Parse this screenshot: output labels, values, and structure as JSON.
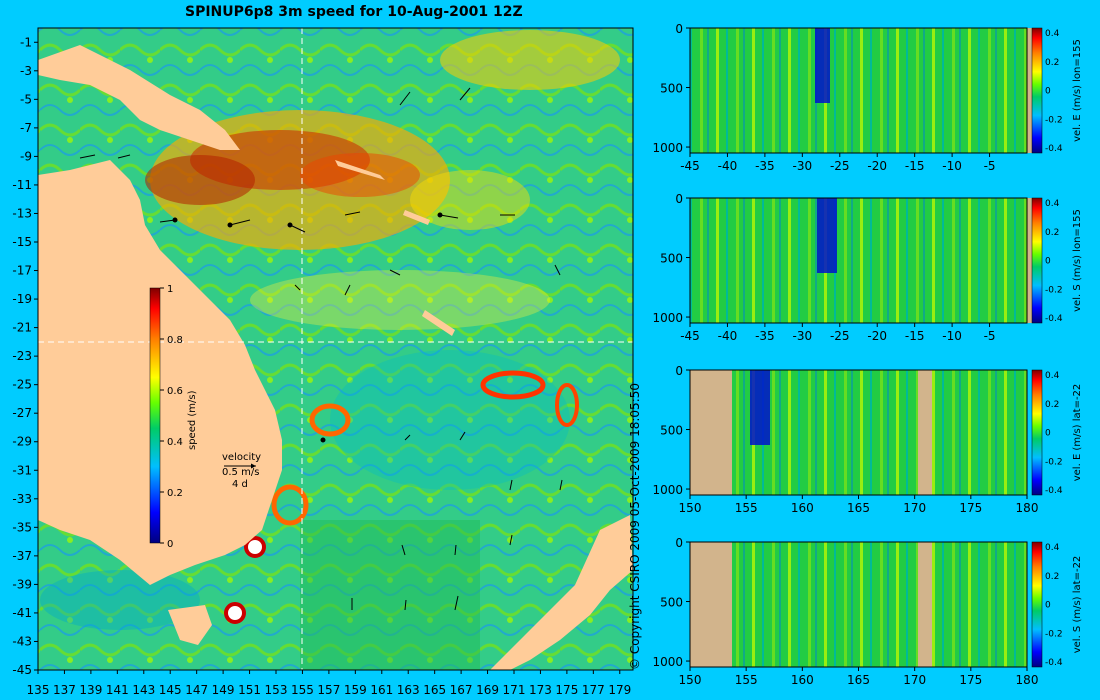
{
  "title": "SPINUP6p8 3m speed for 10-Aug-2001 12Z",
  "copyright": "© Copyright CSIRO 2009   05-Oct-2009 18:05:50",
  "colors": {
    "background": "#00ccff",
    "land": "#ffcc99",
    "section_land": "#d2b48c",
    "colormap": [
      "#00007f",
      "#0000ff",
      "#007fff",
      "#00ffff",
      "#00cc66",
      "#66ff00",
      "#ffff00",
      "#ff7f00",
      "#ff0000",
      "#7f0000"
    ]
  },
  "chart_data": [
    {
      "type": "heatmap",
      "name": "map",
      "title": "SPINUP6p8 3m speed for 10-Aug-2001 12Z",
      "x_ticks": [
        "135",
        "137",
        "139",
        "141",
        "143",
        "145",
        "147",
        "149",
        "151",
        "153",
        "155",
        "157",
        "159",
        "161",
        "163",
        "165",
        "167",
        "169",
        "171",
        "173",
        "175",
        "177",
        "179"
      ],
      "y_ticks": [
        "-1",
        "-3",
        "-5",
        "-7",
        "-9",
        "-11",
        "-13",
        "-15",
        "-17",
        "-19",
        "-21",
        "-23",
        "-25",
        "-27",
        "-29",
        "-31",
        "-33",
        "-35",
        "-37",
        "-39",
        "-41",
        "-43",
        "-45"
      ],
      "xlim": [
        135,
        180
      ],
      "ylim": [
        -45,
        0
      ],
      "section_lon": 155,
      "section_lat": -22,
      "colorbar": {
        "label": "speed (m/s)",
        "ticks": [
          "0",
          "0.2",
          "0.4",
          "0.6",
          "0.8",
          "1"
        ],
        "range": [
          0,
          1
        ]
      },
      "velocity_key": {
        "title": "velocity",
        "scale": "0.5 m/s",
        "time": "4 d"
      }
    },
    {
      "type": "heatmap",
      "name": "section-1",
      "colorbar_label": "vel. E (m/s) lon=155",
      "x_ticks": [
        "-45",
        "-40",
        "-35",
        "-30",
        "-25",
        "-20",
        "-15",
        "-10",
        "-5"
      ],
      "y_ticks": [
        "0",
        "500",
        "1000"
      ],
      "cb_ticks": [
        "0.4",
        "0.2",
        "0",
        "-0.2",
        "-0.4"
      ],
      "clim": [
        -0.4,
        0.4
      ]
    },
    {
      "type": "heatmap",
      "name": "section-2",
      "colorbar_label": "vel. S (m/s) lon=155",
      "x_ticks": [
        "-45",
        "-40",
        "-35",
        "-30",
        "-25",
        "-20",
        "-15",
        "-10",
        "-5"
      ],
      "y_ticks": [
        "0",
        "500",
        "1000"
      ],
      "cb_ticks": [
        "0.4",
        "0.2",
        "0",
        "-0.2",
        "-0.4"
      ],
      "clim": [
        -0.4,
        0.4
      ]
    },
    {
      "type": "heatmap",
      "name": "section-3",
      "colorbar_label": "vel. E (m/s) lat=-22",
      "x_ticks": [
        "150",
        "155",
        "160",
        "165",
        "170",
        "175",
        "180"
      ],
      "y_ticks": [
        "0",
        "500",
        "1000"
      ],
      "cb_ticks": [
        "0.4",
        "0.2",
        "0",
        "-0.2",
        "-0.4"
      ],
      "clim": [
        -0.4,
        0.4
      ]
    },
    {
      "type": "heatmap",
      "name": "section-4",
      "colorbar_label": "vel. S (m/s) lat=-22",
      "x_ticks": [
        "150",
        "155",
        "160",
        "165",
        "170",
        "175",
        "180"
      ],
      "y_ticks": [
        "0",
        "500",
        "1000"
      ],
      "cb_ticks": [
        "0.4",
        "0.2",
        "0",
        "-0.2",
        "-0.4"
      ],
      "clim": [
        -0.4,
        0.4
      ]
    }
  ]
}
